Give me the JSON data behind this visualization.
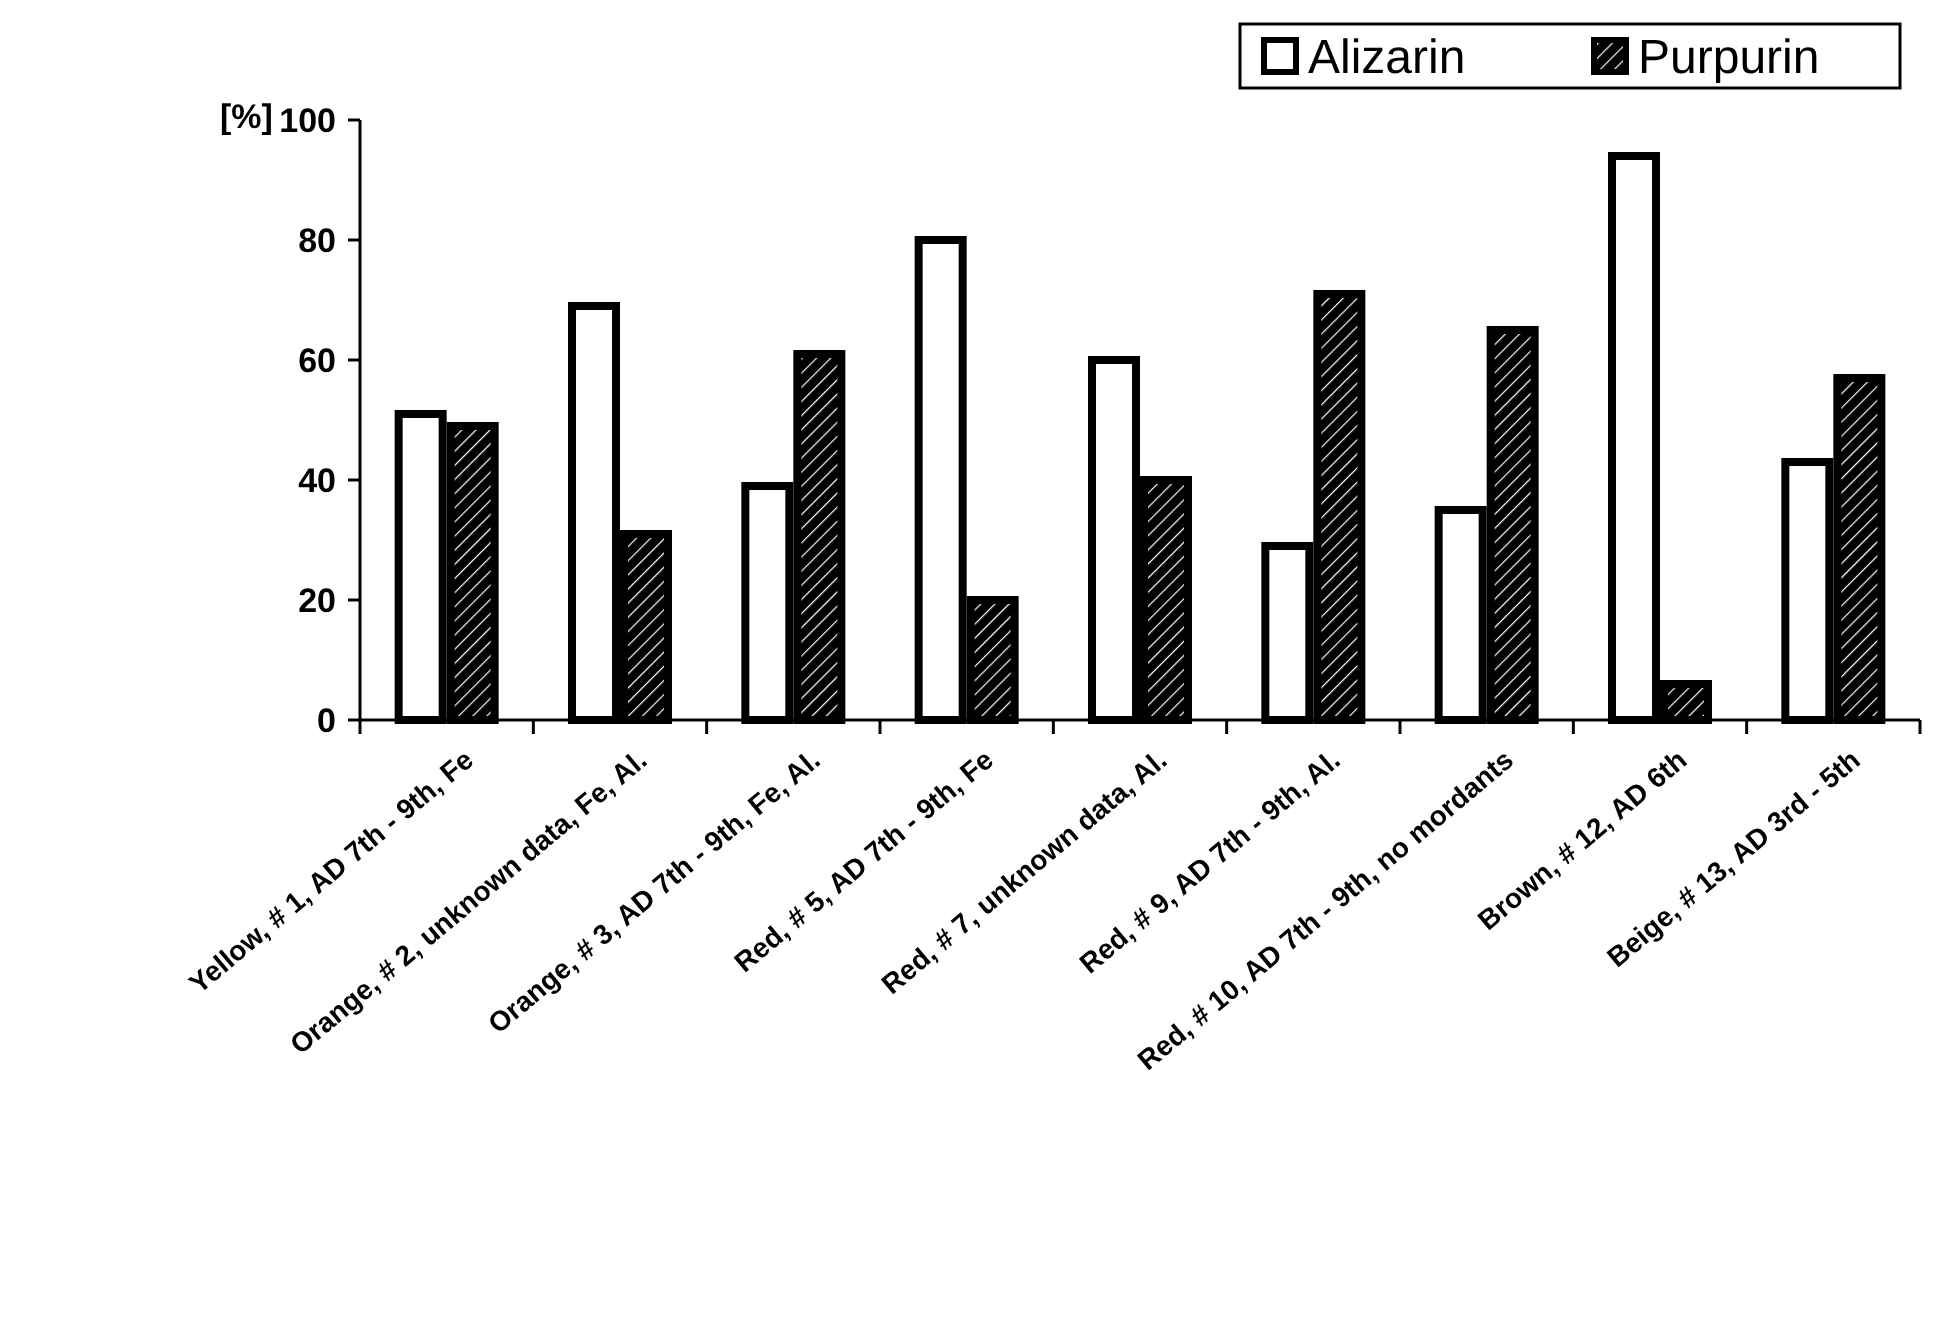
{
  "chart_data": {
    "type": "bar",
    "ylabel": "[%]",
    "categories": [
      "Yellow, # 1, AD 7th - 9th, Fe",
      "Orange, # 2, unknown data, Fe, Al.",
      "Orange, # 3, AD 7th - 9th, Fe, Al.",
      "Red, # 5, AD 7th - 9th, Fe",
      "Red, # 7, unknown data, Al.",
      "Red, # 9, AD 7th - 9th, Al.",
      "Red, # 10, AD 7th - 9th, no mordants",
      "Brown,  # 12, AD 6th",
      "Beige, # 13, AD 3rd - 5th"
    ],
    "series": [
      {
        "name": "Alizarin",
        "color": "#ffffff",
        "values": [
          51,
          69,
          39,
          80,
          60,
          29,
          35,
          94,
          43
        ]
      },
      {
        "name": "Purpurin",
        "color": "#000000",
        "values": [
          49,
          31,
          61,
          20,
          40,
          71,
          65,
          6,
          57
        ]
      }
    ],
    "ylim": [
      0,
      100
    ],
    "yticks": [
      0,
      20,
      40,
      60,
      80,
      100
    ],
    "grid": false,
    "legend": "top right"
  }
}
